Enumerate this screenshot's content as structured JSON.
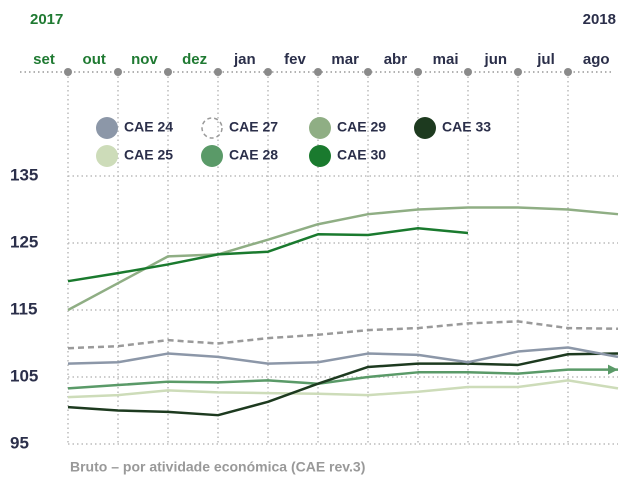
{
  "chart_data": {
    "type": "line",
    "years": [
      "2017",
      "2018"
    ],
    "categories": [
      "set",
      "out",
      "nov",
      "dez",
      "jan",
      "fev",
      "mar",
      "abr",
      "mai",
      "jun",
      "jul",
      "ago"
    ],
    "category_colors": [
      "#1f7a32",
      "#1f7a32",
      "#1f7a32",
      "#1f7a32",
      "#2b2f4a",
      "#2b2f4a",
      "#2b2f4a",
      "#2b2f4a",
      "#2b2f4a",
      "#2b2f4a",
      "#2b2f4a",
      "#2b2f4a"
    ],
    "ylim": [
      95,
      135
    ],
    "yticks": [
      95,
      105,
      115,
      125,
      135
    ],
    "grid": true,
    "x_label": "Bruto – por atividade económica (CAE rev.3)",
    "series": [
      {
        "name": "CAE 24",
        "color": "#8c97a8",
        "values": [
          107,
          107.2,
          108.5,
          108,
          107,
          107.2,
          108.5,
          108.3,
          107.2,
          108.8,
          109.4,
          108
        ]
      },
      {
        "name": "CAE 27",
        "color": "#9a9a9a",
        "dashed": true,
        "values": [
          109.3,
          109.6,
          110.5,
          110,
          110.8,
          111.3,
          112,
          112.3,
          113,
          113.3,
          112.3,
          112.2
        ]
      },
      {
        "name": "CAE 29",
        "color": "#8fae84",
        "values": [
          115,
          119,
          123,
          123.3,
          125.5,
          127.8,
          129.3,
          130,
          130.3,
          130.3,
          130,
          129.3
        ]
      },
      {
        "name": "CAE 33",
        "color": "#1d3a1f",
        "values": [
          100.5,
          100,
          99.8,
          99.3,
          101.3,
          104,
          106.5,
          107,
          107,
          106.8,
          108.4,
          108.5
        ]
      },
      {
        "name": "CAE 25",
        "color": "#cddcb9",
        "values": [
          102,
          102.3,
          103,
          102.7,
          102.6,
          102.5,
          102.3,
          102.8,
          103.5,
          103.5,
          104.5,
          103.3
        ]
      },
      {
        "name": "CAE 28",
        "color": "#5a9a68",
        "values": [
          103.3,
          103.8,
          104.3,
          104.2,
          104.5,
          104,
          105,
          105.7,
          105.7,
          105.5,
          106.1,
          106.1
        ]
      },
      {
        "name": "CAE 30",
        "color": "#1a7a2e",
        "values": [
          119.3,
          120.5,
          121.8,
          123.3,
          123.7,
          126.3,
          126.2,
          127.2,
          126.5,
          null,
          null,
          null
        ]
      }
    ]
  }
}
